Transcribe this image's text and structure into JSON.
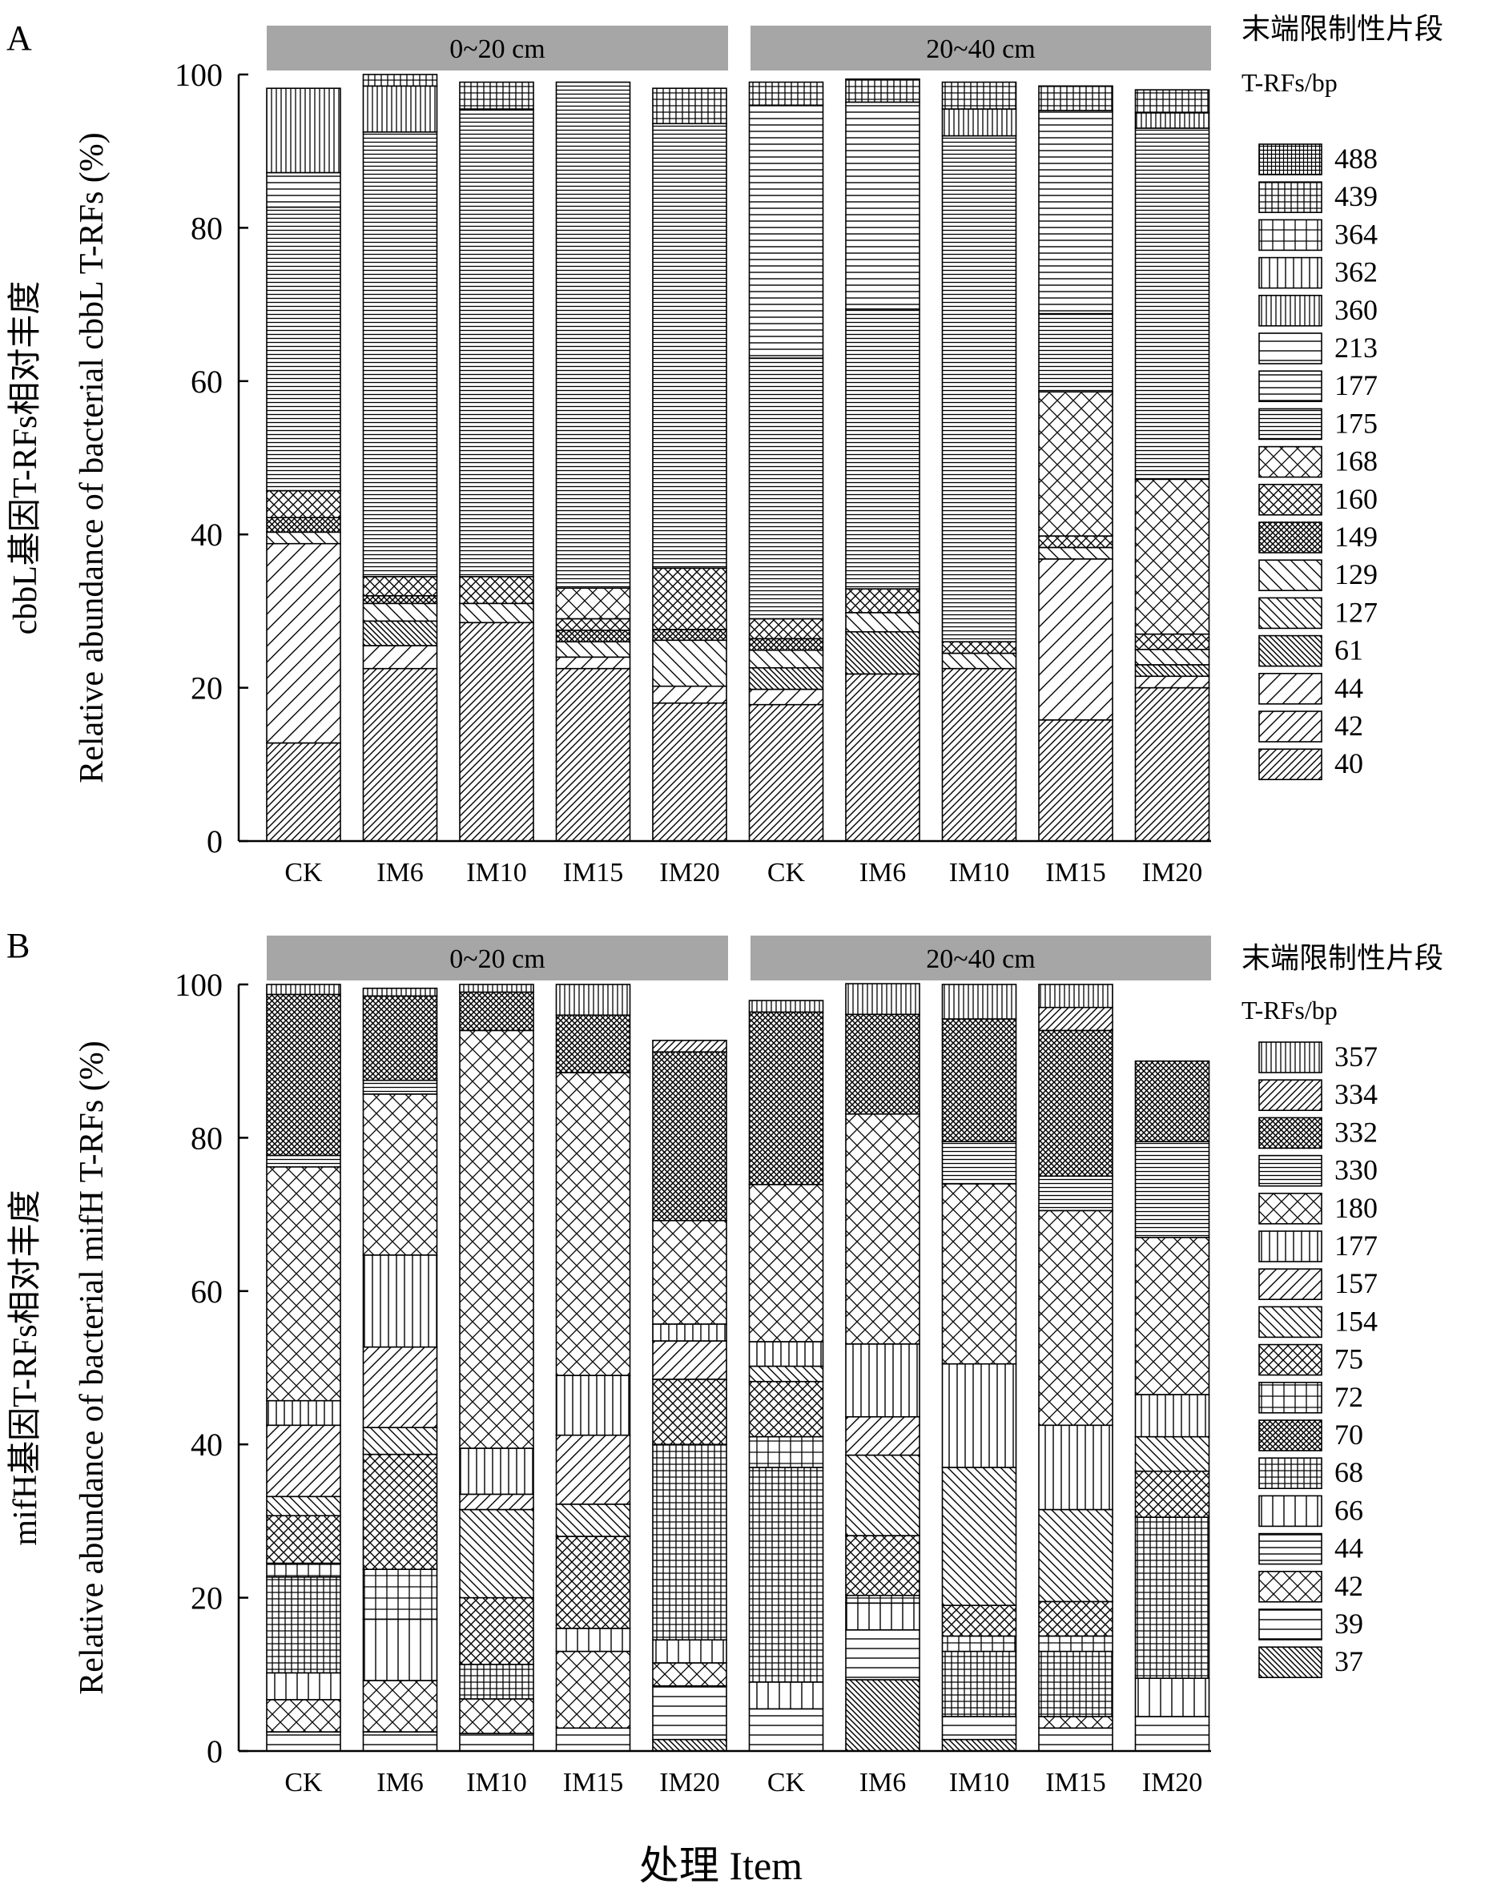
{
  "figure": {
    "xlabel": "处理  Item"
  },
  "colors": {
    "ink": "#000000",
    "paper": "#ffffff",
    "depth_bar": "#a6a6a6"
  },
  "chart_data": [
    {
      "type": "bar",
      "stacked": true,
      "panel_letter": "A",
      "depth_groups": [
        "0~20 cm",
        "20~40 cm"
      ],
      "categories": [
        "CK",
        "IM6",
        "IM10",
        "IM15",
        "IM20",
        "CK",
        "IM6",
        "IM10",
        "IM15",
        "IM20"
      ],
      "ylabel_cn": "cbbL基因T-RFs相对丰度",
      "ylabel_en": "Relative abundance of bacterial cbbL T-RFs (%)",
      "ylim": [
        0,
        100
      ],
      "yticks": [
        0,
        20,
        40,
        60,
        80,
        100
      ],
      "legend_title_cn": "末端限制性片段",
      "legend_title_en": "T-RFs/bp",
      "legend_position": "right",
      "series": [
        {
          "name": "40",
          "pattern": "hatch-fwd",
          "values": [
            12.8,
            22.5,
            28.5,
            22.5,
            18.0,
            17.8,
            21.8,
            22.5,
            15.8,
            20.0
          ]
        },
        {
          "name": "42",
          "pattern": "hatch-fwd-w",
          "values": [
            0,
            0,
            0,
            0,
            0,
            0,
            0,
            0,
            0,
            0
          ]
        },
        {
          "name": "44",
          "pattern": "hatch-fwd-xw",
          "values": [
            26.0,
            3.0,
            0,
            1.5,
            2.2,
            2.0,
            0,
            0,
            21.0,
            1.5
          ]
        },
        {
          "name": "61",
          "pattern": "hatch-back-d",
          "values": [
            0,
            3.2,
            0,
            0,
            0,
            2.8,
            5.5,
            0,
            0,
            1.5
          ]
        },
        {
          "name": "127",
          "pattern": "hatch-back",
          "values": [
            0,
            0,
            0,
            0,
            0,
            0,
            0,
            0,
            0,
            0
          ]
        },
        {
          "name": "129",
          "pattern": "hatch-back-w",
          "values": [
            1.5,
            2.3,
            2.5,
            2.0,
            6.0,
            2.3,
            2.5,
            2.0,
            1.5,
            2.0
          ]
        },
        {
          "name": "149",
          "pattern": "cross-d",
          "values": [
            1.9,
            1.0,
            0,
            1.5,
            1.4,
            1.5,
            0,
            0,
            0,
            0
          ]
        },
        {
          "name": "160",
          "pattern": "cross-m",
          "values": [
            3.5,
            2.5,
            3.5,
            1.5,
            8.0,
            2.6,
            3.1,
            1.5,
            1.5,
            2.0
          ]
        },
        {
          "name": "168",
          "pattern": "cross-w",
          "values": [
            0,
            0,
            0,
            4.0,
            0,
            0,
            0,
            0,
            18.8,
            20.2
          ]
        },
        {
          "name": "175",
          "pattern": "hline-d",
          "values": [
            37.0,
            58.0,
            61.0,
            66.0,
            58.0,
            34.0,
            36.5,
            66.0,
            10.2,
            45.8
          ]
        },
        {
          "name": "177",
          "pattern": "hline-m",
          "values": [
            4.5,
            0,
            0,
            0,
            0,
            33.0,
            27.0,
            0,
            26.5,
            0
          ]
        },
        {
          "name": "213",
          "pattern": "hline-w",
          "values": [
            0,
            0,
            0,
            0,
            0,
            0,
            0,
            0,
            0,
            0
          ]
        },
        {
          "name": "360",
          "pattern": "vline-d",
          "values": [
            11.0,
            6.0,
            0,
            0,
            0,
            0,
            0,
            3.5,
            0,
            2.0
          ]
        },
        {
          "name": "362",
          "pattern": "vline-m",
          "values": [
            0,
            0,
            0,
            0,
            0,
            0,
            0,
            0,
            0,
            0
          ]
        },
        {
          "name": "364",
          "pattern": "grid-w",
          "values": [
            0,
            0,
            0,
            0,
            0,
            0,
            0,
            0,
            0,
            0
          ]
        },
        {
          "name": "439",
          "pattern": "grid-m",
          "values": [
            0,
            1.5,
            3.5,
            0,
            4.6,
            3.0,
            3.0,
            3.5,
            3.2,
            3.0
          ]
        },
        {
          "name": "488",
          "pattern": "grid-d",
          "values": [
            0,
            0,
            0,
            0,
            0,
            0,
            0,
            0,
            0,
            0
          ]
        }
      ]
    },
    {
      "type": "bar",
      "stacked": true,
      "panel_letter": "B",
      "depth_groups": [
        "0~20 cm",
        "20~40 cm"
      ],
      "categories": [
        "CK",
        "IM6",
        "IM10",
        "IM15",
        "IM20",
        "CK",
        "IM6",
        "IM10",
        "IM15",
        "IM20"
      ],
      "ylabel_cn": "mifH基因T-RFs相对丰度",
      "ylabel_en": "Relative abundance of bacterial mifH T-RFs (%)",
      "ylim": [
        0,
        100
      ],
      "yticks": [
        0,
        20,
        40,
        60,
        80,
        100
      ],
      "legend_title_cn": "末端限制性片段",
      "legend_title_en": "T-RFs/bp",
      "legend_position": "right",
      "series": [
        {
          "name": "37",
          "pattern": "hatch-back-d",
          "values": [
            0,
            0,
            0,
            0,
            1.5,
            0,
            9.3,
            1.5,
            0,
            0
          ]
        },
        {
          "name": "39",
          "pattern": "hline-w",
          "values": [
            2.5,
            2.5,
            2.3,
            3.0,
            7.0,
            5.5,
            6.5,
            3.0,
            3.0,
            4.5
          ]
        },
        {
          "name": "42",
          "pattern": "cross-w",
          "values": [
            4.2,
            6.7,
            4.5,
            10.0,
            3.0,
            0,
            0,
            0,
            1.5,
            0
          ]
        },
        {
          "name": "44",
          "pattern": "hline-m",
          "values": [
            0,
            0,
            0,
            0,
            0,
            0,
            0,
            0,
            0,
            0
          ]
        },
        {
          "name": "66",
          "pattern": "vline-w",
          "values": [
            3.5,
            8.0,
            0,
            3.0,
            3.0,
            3.5,
            3.5,
            0,
            0,
            5.0
          ]
        },
        {
          "name": "68",
          "pattern": "grid-m",
          "values": [
            12.5,
            0,
            4.5,
            0,
            25.5,
            28.0,
            0,
            8.5,
            8.5,
            21.0
          ]
        },
        {
          "name": "70",
          "pattern": "cross-d",
          "values": [
            0,
            0,
            0,
            0,
            0,
            0,
            0,
            0,
            0,
            0
          ]
        },
        {
          "name": "72",
          "pattern": "grid-w",
          "values": [
            1.8,
            6.5,
            0,
            0,
            0,
            4.0,
            1.0,
            2.0,
            2.0,
            0
          ]
        },
        {
          "name": "75",
          "pattern": "cross-m",
          "values": [
            6.2,
            15.0,
            8.7,
            12.0,
            8.5,
            7.2,
            7.8,
            4.0,
            4.5,
            6.0
          ]
        },
        {
          "name": "154",
          "pattern": "hatch-back",
          "values": [
            2.5,
            3.5,
            11.5,
            4.2,
            0,
            2.0,
            10.5,
            18.0,
            12.0,
            4.5
          ]
        },
        {
          "name": "157",
          "pattern": "hatch-fwd-w",
          "values": [
            9.3,
            10.5,
            2.0,
            9.0,
            5.0,
            0,
            5.0,
            0,
            0,
            0
          ]
        },
        {
          "name": "177",
          "pattern": "vline-m",
          "values": [
            3.2,
            12.0,
            6.0,
            7.8,
            2.2,
            3.2,
            9.5,
            13.5,
            11.0,
            5.5
          ]
        },
        {
          "name": "180",
          "pattern": "cross-w",
          "values": [
            30.5,
            21.0,
            54.5,
            39.5,
            13.5,
            20.5,
            30.0,
            23.5,
            28.0,
            20.5
          ]
        },
        {
          "name": "330",
          "pattern": "hline-d",
          "values": [
            1.5,
            1.8,
            0,
            0,
            0,
            0,
            0,
            5.5,
            4.5,
            12.5
          ]
        },
        {
          "name": "332",
          "pattern": "cross-d",
          "values": [
            21.0,
            11.0,
            5.0,
            7.5,
            22.0,
            22.5,
            13.0,
            16.0,
            19.0,
            10.5
          ]
        },
        {
          "name": "334",
          "pattern": "hatch-fwd",
          "values": [
            0,
            0,
            0,
            0,
            1.5,
            0,
            0,
            0,
            3.0,
            0
          ]
        },
        {
          "name": "357",
          "pattern": "vline-d",
          "values": [
            1.3,
            1.0,
            1.0,
            4.0,
            0,
            1.5,
            4.0,
            4.5,
            3.0,
            0
          ]
        }
      ]
    }
  ]
}
